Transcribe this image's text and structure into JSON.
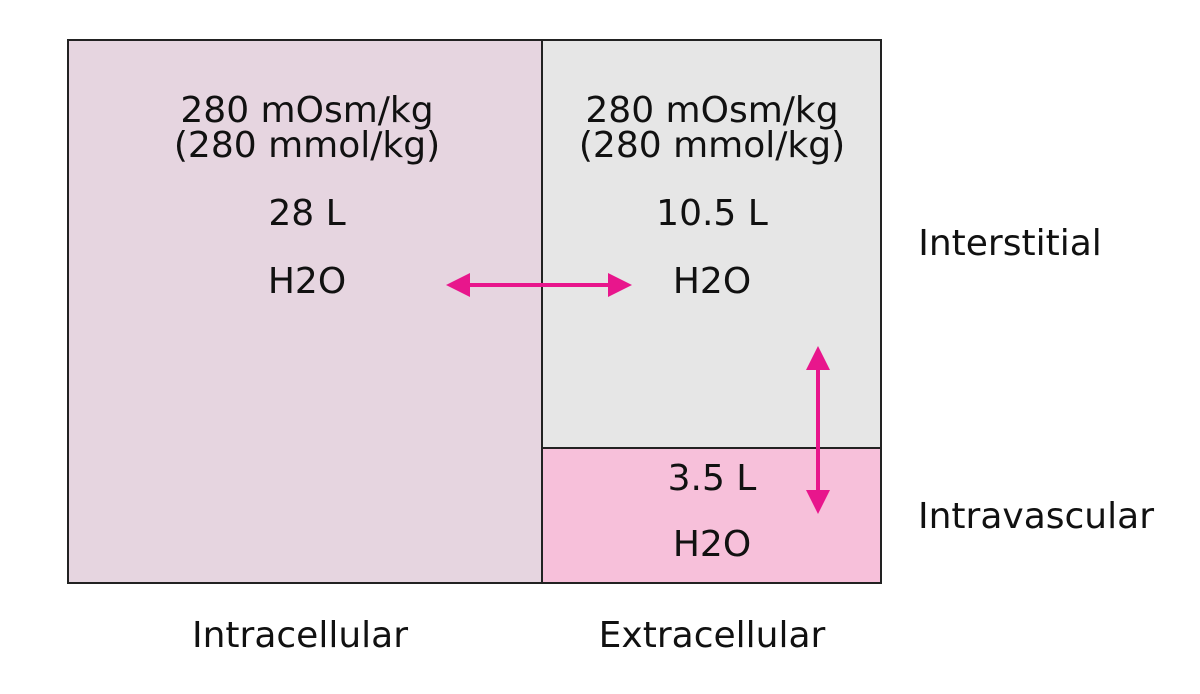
{
  "compartments": {
    "intracellular": {
      "label": "Intracellular",
      "osmolality": "280 mOsm/kg",
      "osmolality_si": "(280 mmol/kg)",
      "volume": "28 L",
      "substance": "H2O"
    },
    "interstitial": {
      "label": "Interstitial",
      "osmolality": "280 mOsm/kg",
      "osmolality_si": "(280 mmol/kg)",
      "volume": "10.5 L",
      "substance": "H2O"
    },
    "intravascular": {
      "label": "Intravascular",
      "volume": "3.5 L",
      "substance": "H2O"
    },
    "extracellular": {
      "label": "Extracellular"
    }
  }
}
